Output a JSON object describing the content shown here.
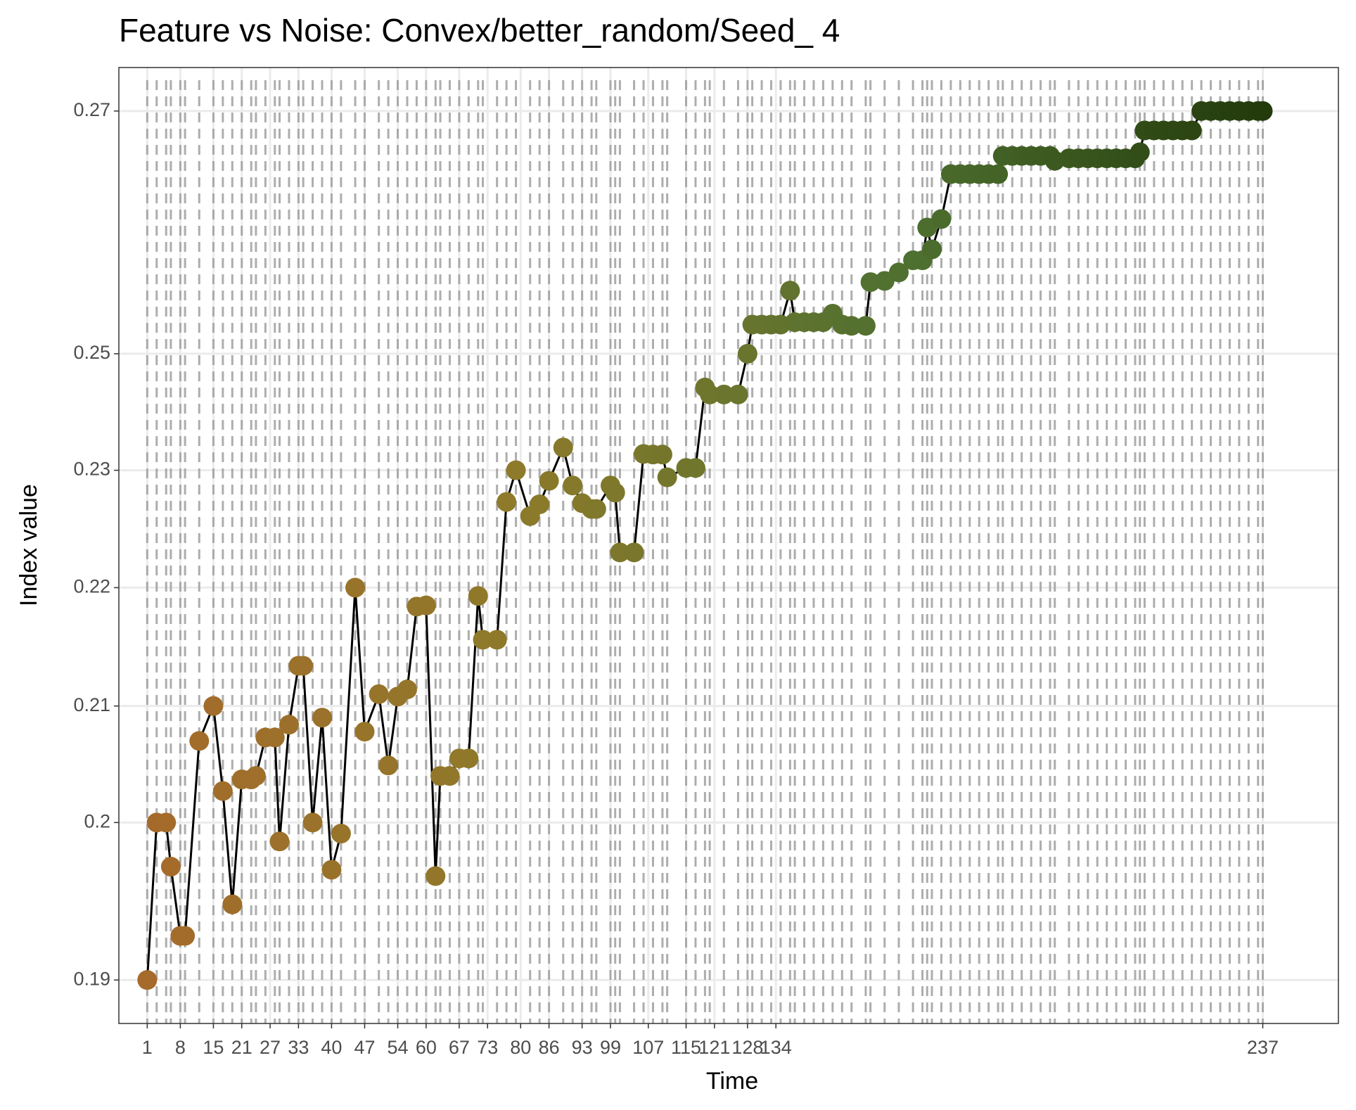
{
  "chart_data": {
    "type": "line",
    "title": "Feature vs Noise: Convex/better_random/Seed_ 4",
    "x_label": "Time",
    "y_label": "Index value",
    "x": [
      1,
      3,
      5,
      6,
      8,
      9,
      12,
      15,
      17,
      19,
      21,
      23,
      24,
      26,
      28,
      29,
      31,
      33,
      34,
      36,
      38,
      40,
      42,
      45,
      47,
      50,
      52,
      54,
      56,
      58,
      60,
      62,
      63,
      65,
      67,
      69,
      71,
      72,
      75,
      77,
      79,
      82,
      84,
      86,
      89,
      91,
      93,
      95,
      96,
      99,
      100,
      101,
      104,
      106,
      108,
      110,
      111,
      115,
      117,
      119,
      120,
      123,
      126,
      128,
      129,
      131,
      133,
      135,
      137,
      138,
      140,
      142,
      144,
      146,
      148,
      150,
      153,
      154,
      157,
      160,
      163,
      165,
      166,
      167,
      169,
      171,
      173,
      175,
      177,
      179,
      181,
      182,
      184,
      186,
      188,
      190,
      192,
      193,
      196,
      198,
      200,
      202,
      204,
      206,
      208,
      210,
      211,
      212,
      214,
      216,
      218,
      220,
      222,
      224,
      226,
      228,
      230,
      232,
      234,
      236,
      237
    ],
    "values": [
      0.19,
      0.2,
      0.2,
      0.1972,
      0.1928,
      0.1928,
      0.207,
      0.21,
      0.2027,
      0.1948,
      0.2037,
      0.2037,
      0.204,
      0.2073,
      0.2073,
      0.1988,
      0.2084,
      0.2134,
      0.2134,
      0.2,
      0.209,
      0.197,
      0.1993,
      0.22,
      0.2078,
      0.211,
      0.2049,
      0.2108,
      0.2114,
      0.2184,
      0.2185,
      0.1966,
      0.204,
      0.204,
      0.2055,
      0.2055,
      0.2193,
      0.2156,
      0.2156,
      0.2273,
      0.23,
      0.2261,
      0.2271,
      0.2291,
      0.2339,
      0.2287,
      0.2272,
      0.2267,
      0.2267,
      0.2287,
      0.2281,
      0.223,
      0.223,
      0.2328,
      0.2327,
      0.2327,
      0.2294,
      0.2304,
      0.2304,
      0.2442,
      0.243,
      0.243,
      0.243,
      0.25,
      0.2524,
      0.2524,
      0.2524,
      0.2524,
      0.2552,
      0.2526,
      0.2526,
      0.2526,
      0.2526,
      0.2533,
      0.2524,
      0.2523,
      0.2523,
      0.2559,
      0.256,
      0.2567,
      0.2577,
      0.2577,
      0.2604,
      0.2586,
      0.2611,
      0.2648,
      0.2648,
      0.2648,
      0.2648,
      0.2648,
      0.2648,
      0.2663,
      0.2663,
      0.2663,
      0.2663,
      0.2663,
      0.2663,
      0.2659,
      0.2661,
      0.2661,
      0.2661,
      0.2661,
      0.2661,
      0.2661,
      0.2661,
      0.2661,
      0.2666,
      0.2684,
      0.2684,
      0.2684,
      0.2684,
      0.2684,
      0.2684,
      0.27,
      0.27,
      0.27,
      0.27,
      0.27,
      0.27,
      0.27,
      0.27
    ],
    "line_color": "#000000",
    "color_gradient": [
      "#a66a2b",
      "#8d7a2a",
      "#4e7030",
      "#233a0b"
    ],
    "marker_line_color": "#999999",
    "xlim": [
      -5,
      253
    ],
    "xticks": [
      1,
      8,
      15,
      21,
      27,
      33,
      40,
      47,
      54,
      60,
      67,
      73,
      80,
      86,
      93,
      99,
      107,
      115,
      121,
      128,
      134,
      237
    ],
    "ylim": [
      0.1872,
      0.2736
    ],
    "yticks": [
      0.19,
      0.2,
      0.21,
      0.22,
      0.23,
      0.25,
      0.27
    ],
    "grid": true
  }
}
